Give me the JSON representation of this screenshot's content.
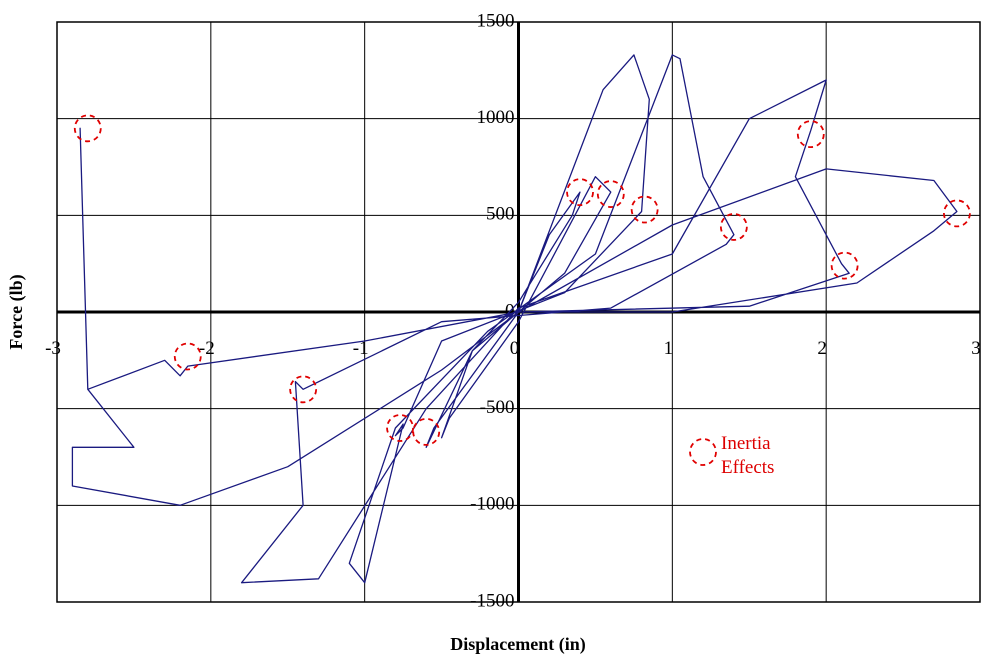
{
  "chart_data": {
    "type": "line",
    "x_label": "Displacement (in)",
    "y_label": "Force (lb)",
    "xlim": [
      -3,
      3
    ],
    "ylim": [
      -1500,
      1500
    ],
    "xticks": [
      -3,
      -2,
      -1,
      0,
      1,
      2,
      3
    ],
    "yticks": [
      -1500,
      -1000,
      -500,
      0,
      500,
      1000,
      1500
    ],
    "grid": true,
    "series": [
      {
        "color": "#1a1a80",
        "x": [
          0,
          0.2,
          0.4,
          0.35,
          0,
          -0.3,
          -0.5,
          -0.45,
          0,
          0.5,
          0.6,
          0.3,
          -0.3,
          -0.6,
          -0.55,
          0,
          0.55,
          0.75,
          0.85,
          0.8,
          0.3,
          -0.5,
          -0.75,
          -0.8,
          -0.75,
          -1,
          -1.1,
          -0.8,
          -0.2,
          0.5,
          1.0,
          1.05,
          1.2,
          1.4,
          1.35,
          0.6,
          -0.5,
          -1.4,
          -1.45,
          -1.4,
          -1.8,
          -1.3,
          -0.6,
          0,
          1.0,
          1.5,
          2.0,
          1.9,
          1.8,
          2.1,
          2.15,
          1.5,
          0,
          -1.0,
          -2.15,
          -2.2,
          -2.3,
          -2.8,
          -2.85,
          -2.8,
          -2.5,
          -2.9,
          -2.9,
          -2.2,
          -1.5,
          -0.5,
          0,
          1.0,
          2.0,
          2.7,
          2.85,
          2.7,
          2.2,
          1.0,
          0
        ],
        "values": [
          0,
          400,
          620,
          500,
          50,
          -200,
          -650,
          -550,
          -50,
          700,
          620,
          200,
          -200,
          -700,
          -600,
          0,
          1150,
          1330,
          1100,
          520,
          100,
          -150,
          -600,
          -640,
          -580,
          -1400,
          -1300,
          -600,
          -100,
          300,
          1330,
          1310,
          700,
          400,
          350,
          20,
          -50,
          -400,
          -360,
          -1000,
          -1400,
          -1380,
          -500,
          20,
          300,
          1000,
          1200,
          940,
          700,
          250,
          200,
          30,
          0,
          -150,
          -280,
          -330,
          -250,
          -400,
          950,
          -400,
          -700,
          -700,
          -900,
          -1000,
          -800,
          -300,
          0,
          450,
          740,
          680,
          520,
          420,
          150,
          0,
          0
        ]
      },
      {
        "name": "Inertia Effects",
        "color": "#e00000",
        "marker": "dashed-circle",
        "x": [
          -2.8,
          -2.15,
          -1.4,
          -0.77,
          -0.6,
          0.4,
          0.6,
          0.82,
          1.4,
          1.9,
          2.12,
          2.85
        ],
        "values": [
          950,
          -230,
          -400,
          -600,
          -620,
          620,
          610,
          530,
          440,
          920,
          240,
          510
        ]
      }
    ]
  }
}
